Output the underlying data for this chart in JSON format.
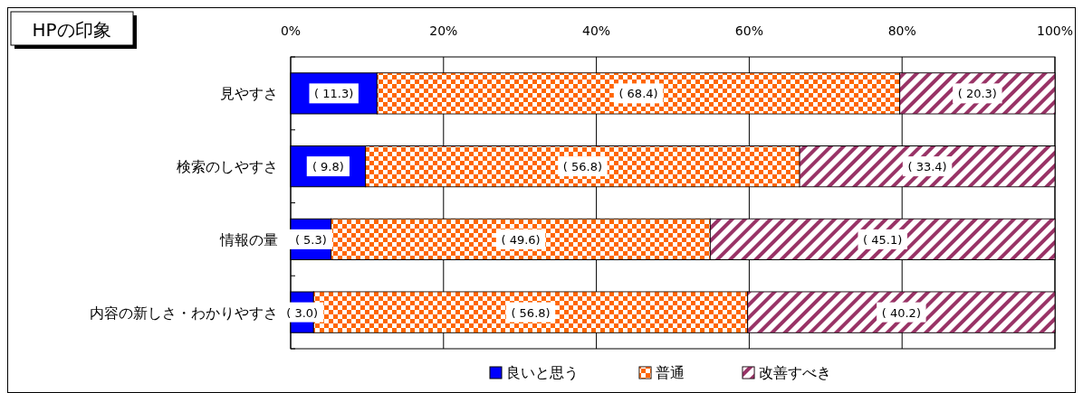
{
  "chart_data": {
    "type": "bar",
    "title": "HPの印象",
    "orientation": "horizontal",
    "stacked": true,
    "categories": [
      "見やすさ",
      "検索のしやすさ",
      "情報の量",
      "内容の新しさ・わかりやすさ"
    ],
    "series": [
      {
        "name": "良いと思う",
        "color": "#0000ff",
        "values": [
          11.3,
          9.8,
          5.3,
          3.0
        ],
        "value_labels": [
          "( 11.3)",
          "( 9.8)",
          "( 5.3)",
          "( 3.0)"
        ]
      },
      {
        "name": "普通",
        "color": "#ff6600",
        "values": [
          68.4,
          56.8,
          49.6,
          56.8
        ],
        "value_labels": [
          "( 68.4)",
          "( 56.8)",
          "( 49.6)",
          "( 56.8)"
        ]
      },
      {
        "name": "改善すべき",
        "color": "#993366",
        "values": [
          20.3,
          33.4,
          45.1,
          40.2
        ],
        "value_labels": [
          "( 20.3)",
          "( 33.4)",
          "( 45.1)",
          "( 40.2)"
        ]
      }
    ],
    "xlim": [
      0,
      100
    ],
    "xticks": [
      {
        "value": 0,
        "label": "0%"
      },
      {
        "value": 20,
        "label": "20%"
      },
      {
        "value": 40,
        "label": "40%"
      },
      {
        "value": 60,
        "label": "60%"
      },
      {
        "value": 80,
        "label": "80%"
      },
      {
        "value": 100,
        "label": "100%"
      }
    ],
    "grid": "x",
    "legend": "bottom"
  }
}
